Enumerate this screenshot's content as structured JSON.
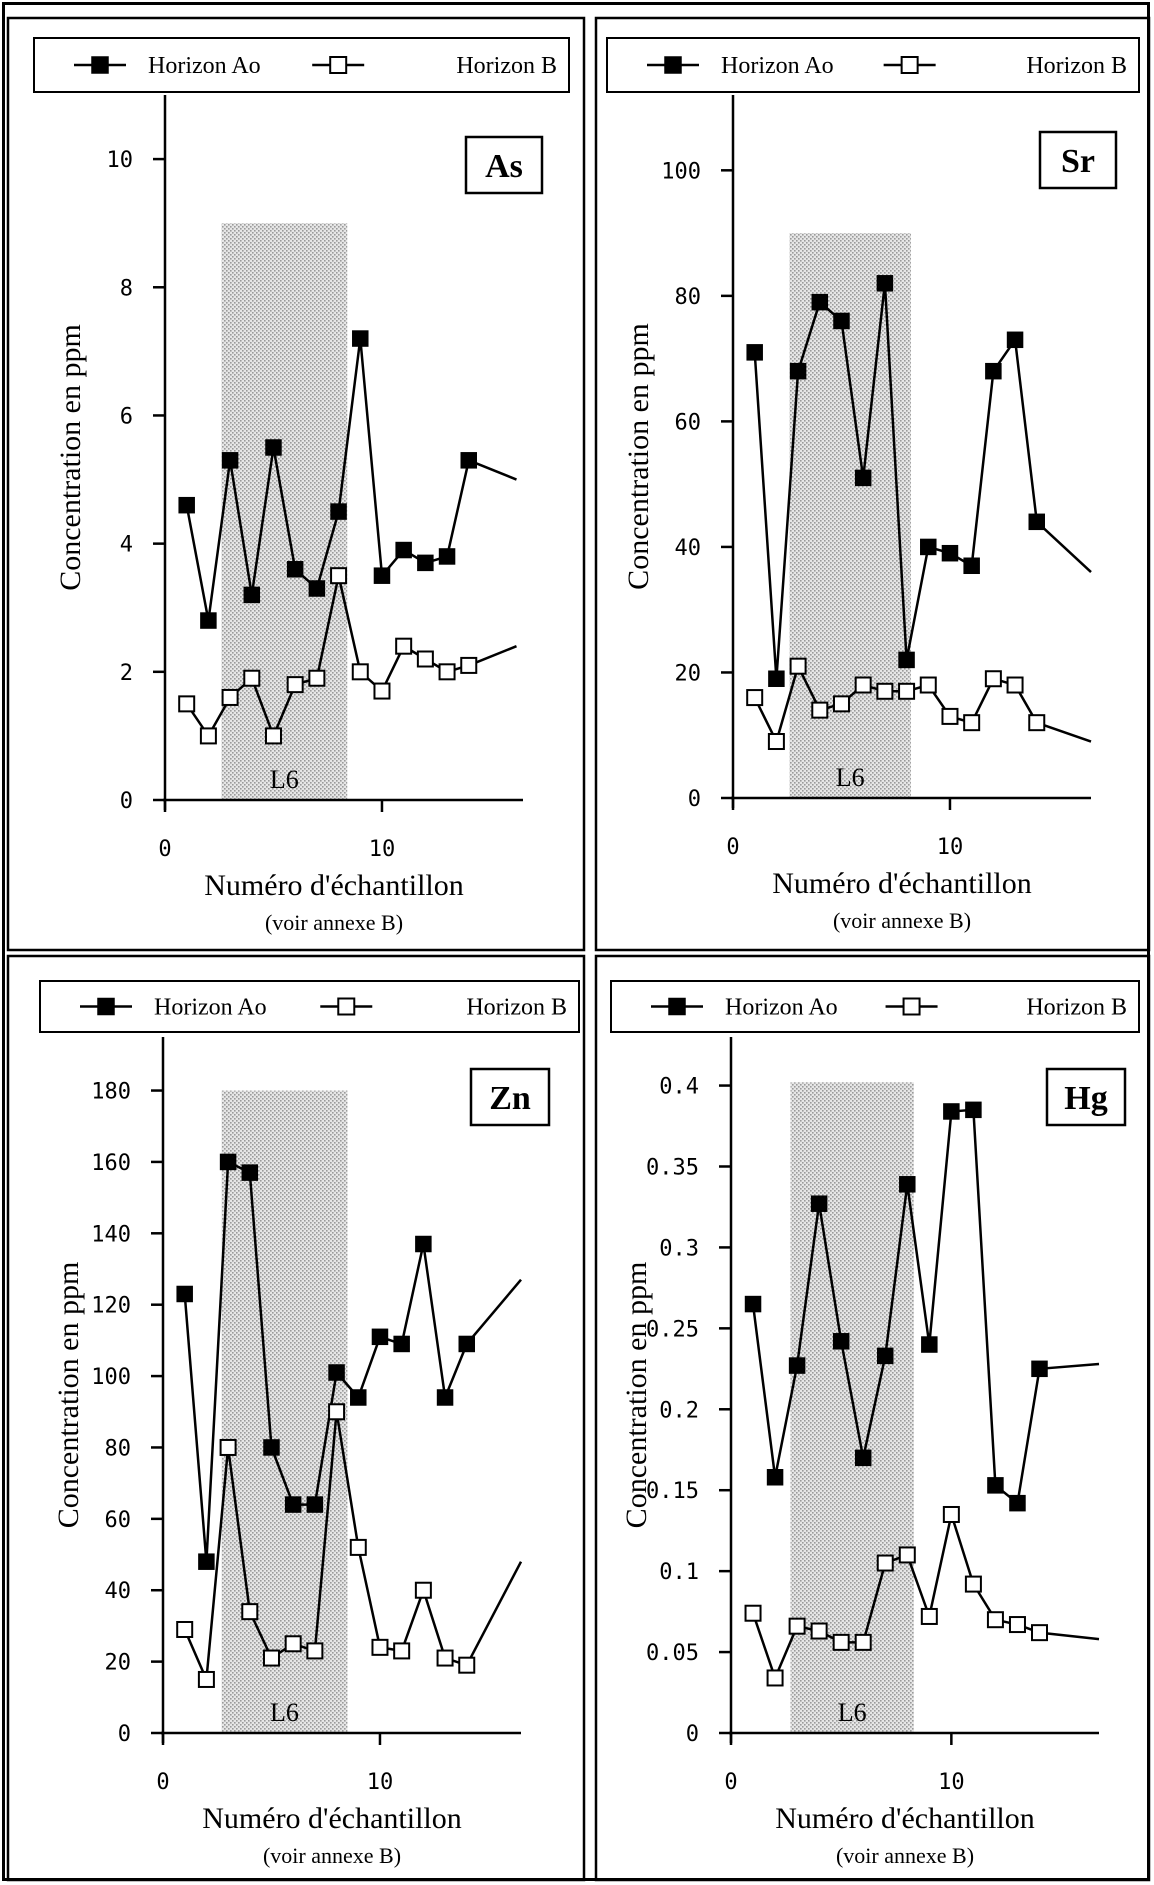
{
  "legend": {
    "series_ao": "Horizon Ao",
    "series_b": "Horizon B"
  },
  "xlabel": "Numéro d'échantillon",
  "xsublabel": "(voir annexe B)",
  "ylabel": "Concentration en ppm",
  "zone_label": "L6",
  "chart_data": [
    {
      "type": "line",
      "element": "As",
      "xlim": [
        0,
        16.5
      ],
      "ylim": [
        0,
        11
      ],
      "yticks": [
        0,
        2,
        4,
        6,
        8,
        10
      ],
      "ytick_labels": [
        "0",
        "2",
        "4",
        "6",
        "8",
        "10"
      ],
      "xticks": [
        0,
        10
      ],
      "xtick_labels": [
        "0",
        "10"
      ],
      "shaded_x": [
        2.6,
        8.4
      ],
      "shaded_y_top": 9,
      "series": [
        {
          "name": "Horizon Ao",
          "marker": "filled-square",
          "x": [
            1,
            2,
            3,
            4,
            5,
            6,
            7,
            8,
            9,
            10,
            11,
            12,
            13,
            14
          ],
          "y": [
            4.6,
            2.8,
            5.3,
            3.2,
            5.5,
            3.6,
            3.3,
            4.5,
            7.2,
            3.5,
            3.9,
            3.7,
            3.8,
            5.3
          ],
          "tail": [
            16.2,
            5.0
          ]
        },
        {
          "name": "Horizon B",
          "marker": "open-square",
          "x": [
            1,
            2,
            3,
            4,
            5,
            6,
            7,
            8,
            9,
            10,
            11,
            12,
            13,
            14
          ],
          "y": [
            1.5,
            1.0,
            1.6,
            1.9,
            1.0,
            1.8,
            1.9,
            3.5,
            2.0,
            1.7,
            2.4,
            2.2,
            2.0,
            2.1
          ],
          "tail": [
            16.2,
            2.4
          ]
        }
      ]
    },
    {
      "type": "line",
      "element": "Sr",
      "xlim": [
        0,
        16.5
      ],
      "ylim": [
        0,
        112
      ],
      "yticks": [
        0,
        20,
        40,
        60,
        80,
        100
      ],
      "ytick_labels": [
        "0",
        "20",
        "40",
        "60",
        "80",
        "100"
      ],
      "xticks": [
        0,
        10
      ],
      "xtick_labels": [
        "0",
        "10"
      ],
      "shaded_x": [
        2.6,
        8.2
      ],
      "shaded_y_top": 90,
      "series": [
        {
          "name": "Horizon Ao",
          "marker": "filled-square",
          "x": [
            1,
            2,
            3,
            4,
            5,
            6,
            7,
            8,
            9,
            10,
            11,
            12,
            13,
            14
          ],
          "y": [
            71,
            19,
            68,
            79,
            76,
            51,
            82,
            22,
            40,
            39,
            37,
            68,
            73,
            44
          ],
          "tail": [
            16.5,
            36
          ]
        },
        {
          "name": "Horizon B",
          "marker": "open-square",
          "x": [
            1,
            2,
            3,
            4,
            5,
            6,
            7,
            8,
            9,
            10,
            11,
            12,
            13,
            14
          ],
          "y": [
            16,
            9,
            21,
            14,
            15,
            18,
            17,
            17,
            18,
            13,
            12,
            19,
            18,
            12
          ],
          "tail": [
            16.5,
            9
          ]
        }
      ]
    },
    {
      "type": "line",
      "element": "Zn",
      "xlim": [
        0,
        16.5
      ],
      "ylim": [
        0,
        195
      ],
      "yticks": [
        0,
        20,
        40,
        60,
        80,
        100,
        120,
        140,
        160,
        180
      ],
      "ytick_labels": [
        "0",
        "20",
        "40",
        "60",
        "80",
        "100",
        "120",
        "140",
        "160",
        "180"
      ],
      "xticks": [
        0,
        10
      ],
      "xtick_labels": [
        "0",
        "10"
      ],
      "shaded_x": [
        2.7,
        8.5
      ],
      "shaded_y_top": 180,
      "series": [
        {
          "name": "Horizon Ao",
          "marker": "filled-square",
          "x": [
            1,
            2,
            3,
            4,
            5,
            6,
            7,
            8,
            9,
            10,
            11,
            12,
            13,
            14
          ],
          "y": [
            123,
            48,
            160,
            157,
            80,
            64,
            64,
            101,
            94,
            111,
            109,
            137,
            94,
            109
          ],
          "tail": [
            16.5,
            127
          ]
        },
        {
          "name": "Horizon B",
          "marker": "open-square",
          "x": [
            1,
            2,
            3,
            4,
            5,
            6,
            7,
            8,
            9,
            10,
            11,
            12,
            13,
            14
          ],
          "y": [
            29,
            15,
            80,
            34,
            21,
            25,
            23,
            90,
            52,
            24,
            23,
            40,
            21,
            19
          ],
          "tail": [
            16.5,
            48
          ]
        }
      ]
    },
    {
      "type": "line",
      "element": "Hg",
      "xlim": [
        0,
        16.7
      ],
      "ylim": [
        0,
        0.43
      ],
      "yticks": [
        0,
        0.05,
        0.1,
        0.15,
        0.2,
        0.25,
        0.3,
        0.35,
        0.4
      ],
      "ytick_labels": [
        "0",
        "0.05",
        "0.1",
        "0.15",
        "0.2",
        "0.25",
        "0.3",
        "0.35",
        "0.4"
      ],
      "xticks": [
        0,
        10
      ],
      "xtick_labels": [
        "0",
        "10"
      ],
      "shaded_x": [
        2.7,
        8.3
      ],
      "shaded_y_top": 0.402,
      "series": [
        {
          "name": "Horizon Ao",
          "marker": "filled-square",
          "x": [
            1,
            2,
            3,
            4,
            5,
            6,
            7,
            8,
            9,
            10,
            11,
            12,
            13,
            14
          ],
          "y": [
            0.265,
            0.158,
            0.227,
            0.327,
            0.242,
            0.17,
            0.233,
            0.339,
            0.24,
            0.384,
            0.385,
            0.153,
            0.142,
            0.225
          ],
          "tail": [
            16.7,
            0.228
          ]
        },
        {
          "name": "Horizon B",
          "marker": "open-square",
          "x": [
            1,
            2,
            3,
            4,
            5,
            6,
            7,
            8,
            9,
            10,
            11,
            12,
            13,
            14
          ],
          "y": [
            0.074,
            0.034,
            0.066,
            0.063,
            0.056,
            0.056,
            0.105,
            0.11,
            0.072,
            0.135,
            0.092,
            0.07,
            0.067,
            0.062
          ],
          "tail": [
            16.7,
            0.058
          ]
        }
      ]
    }
  ]
}
